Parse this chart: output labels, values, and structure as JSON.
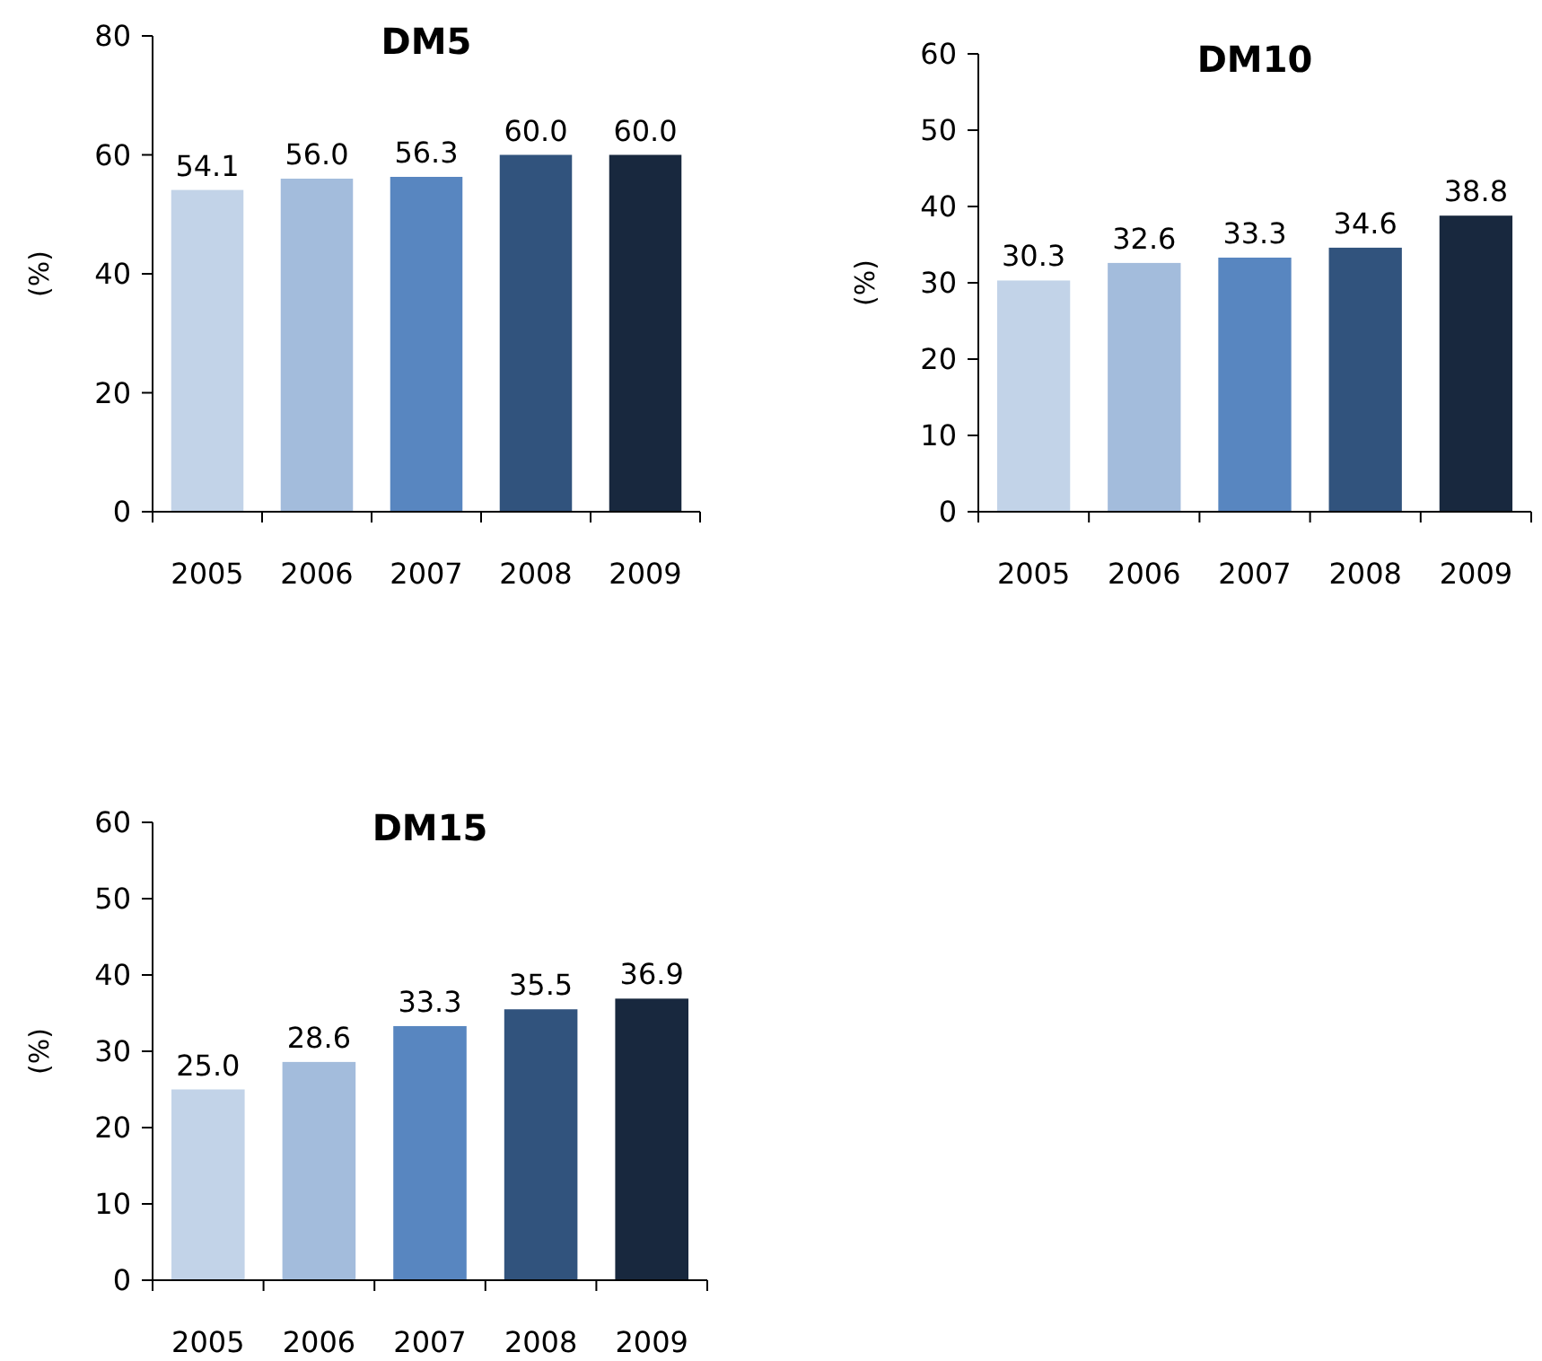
{
  "chart_data": [
    {
      "type": "bar",
      "title": "DM5",
      "ylabel": "(%)",
      "categories": [
        "2005",
        "2006",
        "2007",
        "2008",
        "2009"
      ],
      "values": [
        54.1,
        56.0,
        56.3,
        60.0,
        60.0
      ],
      "value_labels": [
        "54.1",
        "56.0",
        "56.3",
        "60.0",
        "60.0"
      ],
      "colors": [
        "#c2d3e8",
        "#a3bcdc",
        "#5886c0",
        "#31537d",
        "#18283e"
      ],
      "ylim": [
        0,
        80
      ],
      "yticks": [
        0,
        20,
        40,
        60,
        80
      ]
    },
    {
      "type": "bar",
      "title": "DM10",
      "ylabel": "(%)",
      "categories": [
        "2005",
        "2006",
        "2007",
        "2008",
        "2009"
      ],
      "values": [
        30.3,
        32.6,
        33.3,
        34.6,
        38.8
      ],
      "data_labels": true,
      "colors": [
        "#c2d3e8",
        "#a3bcdc",
        "#5886c0",
        "#31537d",
        "#18283e"
      ],
      "ylim": [
        0,
        60
      ],
      "yticks": [
        0,
        10,
        20,
        30,
        40,
        50,
        60
      ]
    },
    {
      "type": "bar",
      "title": "DM15",
      "ylabel": "(%)",
      "categories": [
        "2005",
        "2006",
        "2007",
        "2008",
        "2009"
      ],
      "values": [
        25.0,
        28.6,
        33.3,
        35.5,
        36.9
      ],
      "value_labels": [
        "25.0",
        "28.6",
        "33.3",
        "35.5",
        "36.9"
      ],
      "colors": [
        "#c2d3e8",
        "#a3bcdc",
        "#5886c0",
        "#31537d",
        "#18283e"
      ],
      "ylim": [
        0,
        60
      ],
      "yticks": [
        0,
        10,
        20,
        30,
        40,
        50,
        60
      ]
    }
  ]
}
